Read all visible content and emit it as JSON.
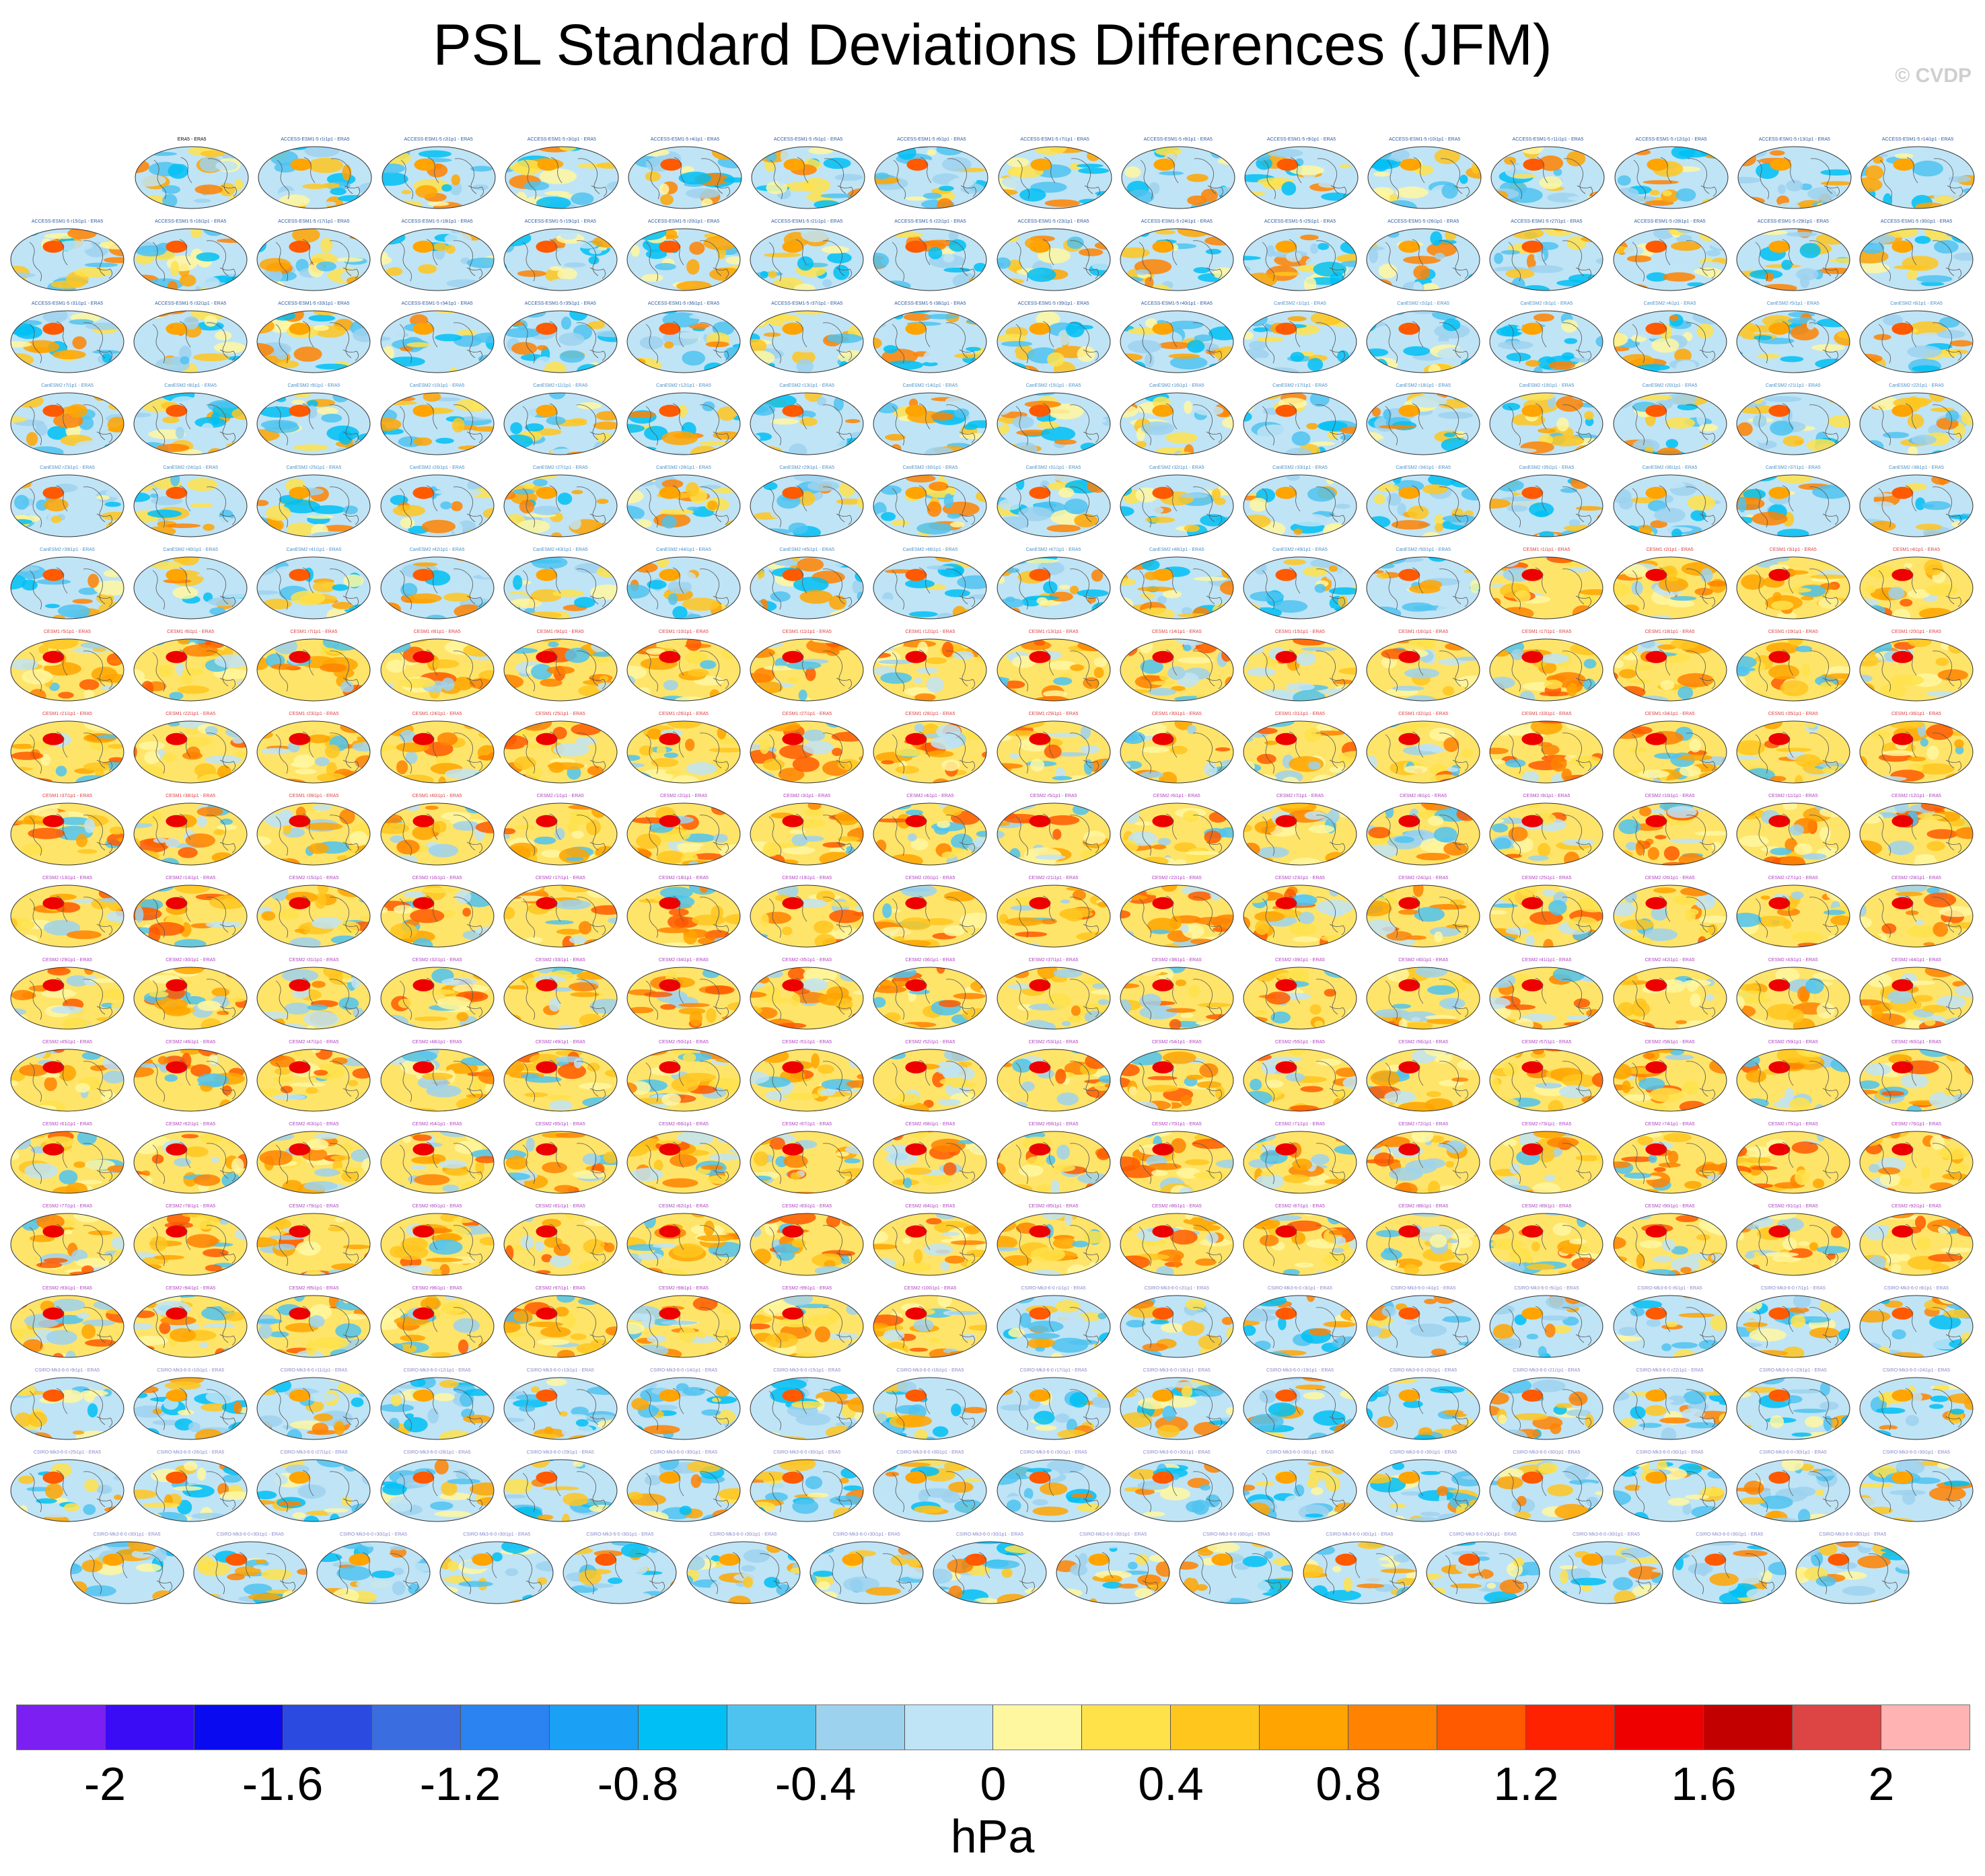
{
  "chart_data": {
    "type": "heatmap",
    "title": "PSL Standard Deviations Differences (JFM)",
    "watermark": "© CVDP",
    "unit_label": "hPa",
    "colorbar": {
      "ticks": [
        "-2",
        "-1.6",
        "-1.2",
        "-0.8",
        "-0.4",
        "0",
        "0.4",
        "0.8",
        "1.2",
        "1.6",
        "2"
      ],
      "tick_values": [
        -2,
        -1.6,
        -1.2,
        -0.8,
        -0.4,
        0,
        0.4,
        0.8,
        1.2,
        1.6,
        2
      ],
      "range": [
        -2.2,
        2.2
      ],
      "colors": [
        "#7b1ff2",
        "#3a0bf5",
        "#0a0af0",
        "#2b4be0",
        "#3a6de0",
        "#2a83f0",
        "#1aa0f5",
        "#00bff5",
        "#4fc3f0",
        "#9dd2ee",
        "#bfe4f6",
        "#fff7a0",
        "#ffe24a",
        "#ffc61e",
        "#ffa400",
        "#ff8200",
        "#ff5a00",
        "#ff2200",
        "#ee0000",
        "#c20000",
        "#dd4444",
        "#ffb3b3"
      ]
    },
    "panels": {
      "rows": [
        15,
        16,
        16,
        16,
        16,
        16,
        16,
        16,
        16,
        16,
        16,
        16,
        16,
        16,
        16,
        16,
        16,
        15
      ],
      "first_panel_title": "ERA5 - ERA5",
      "groups": [
        {
          "name": "ACCESS-ESM1-5",
          "count": 40,
          "title_color": "#2c5aa0"
        },
        {
          "name": "CanESM2",
          "count": 50,
          "title_color": "#4a90c8"
        },
        {
          "name": "CESM1",
          "count": 40,
          "title_color": "#e04040"
        },
        {
          "name": "CESM2",
          "count": 100,
          "title_color": "#b040c0"
        },
        {
          "name": "CSIRO-Mk3-6-0",
          "count": 30,
          "title_color": "#8888cc"
        }
      ]
    }
  }
}
